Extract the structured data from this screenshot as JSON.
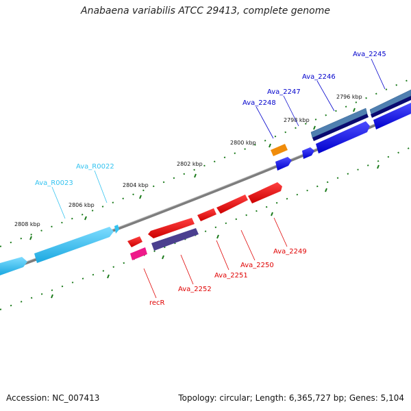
{
  "title": "Anabaena variabilis ATCC 29413, complete genome",
  "footer": {
    "accession": "Accession: NC_007413",
    "summary": "Topology: circular; Length: 6,365,727 bp; Genes: 5,104"
  },
  "colors": {
    "backbone": "#808080",
    "tick": "#1a7a1a",
    "rna": "#33c3f0",
    "rna_label": "#33c3f0",
    "forward_label": "#0000cc",
    "reverse_label": "#e00000",
    "forward_gene": "#0000ee",
    "forward_gene_dark": "#0a0a70",
    "forward_gene_steel": "#4f7fb0",
    "reverse_gene": "#ee0000",
    "recR": "#ee1a8a",
    "purple": "#4b3f8f",
    "orange": "#f08c0a"
  },
  "kbp_labels": [
    "2796 kbp",
    "2798 kbp",
    "2800 kbp",
    "2802 kbp",
    "2804 kbp",
    "2806 kbp",
    "2808 kbp"
  ],
  "gene_labels": {
    "Ava_2245": "Ava_2245",
    "Ava_2246": "Ava_2246",
    "Ava_2247": "Ava_2247",
    "Ava_2248": "Ava_2248",
    "Ava_R0022": "Ava_R0022",
    "Ava_R0023": "Ava_R0023",
    "Ava_2249": "Ava_2249",
    "Ava_2250": "Ava_2250",
    "Ava_2251": "Ava_2251",
    "Ava_2252": "Ava_2252",
    "recR": "recR"
  }
}
